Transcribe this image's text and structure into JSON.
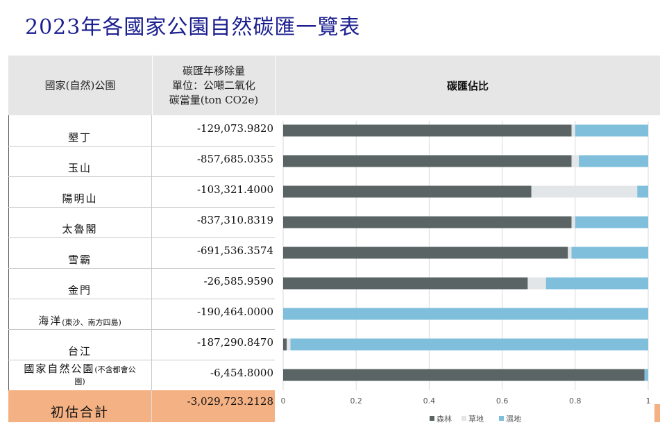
{
  "title": "2023年各國家公園自然碳匯一覽表",
  "table": {
    "header_name": "國家(自然)公園",
    "header_value_lines": [
      "碳匯年移除量",
      "單位：公噸二氧化",
      "碳當量(ton CO2e)"
    ],
    "rows": [
      {
        "name": "墾丁",
        "value": "-129,073.9820"
      },
      {
        "name": "玉山",
        "value": "-857,685.0355"
      },
      {
        "name": "陽明山",
        "value": "-103,321.4000"
      },
      {
        "name": "太魯閣",
        "value": "-837,310.8319"
      },
      {
        "name": "雪霸",
        "value": "-691,536.3574"
      },
      {
        "name": "金門",
        "value": "-26,585.9590"
      },
      {
        "name": "海洋",
        "name_small": "(東沙、南方四島)",
        "value": "-190,464.0000"
      },
      {
        "name": "台江",
        "value": "-187,290.8470"
      },
      {
        "name": "國家自然公園",
        "name_small": "(不含都會公園)",
        "value": "-6,454.8000"
      }
    ],
    "total": {
      "name": "初估合計",
      "value": "-3,029,723.2128"
    }
  },
  "chart_header": "碳匯佔比",
  "chart_data": {
    "type": "bar",
    "orientation": "horizontal",
    "stacked": true,
    "categories": [
      "墾丁",
      "玉山",
      "陽明山",
      "太魯閣",
      "雪霸",
      "金門",
      "海洋",
      "台江",
      "國家自然公園"
    ],
    "series": [
      {
        "name": "森林",
        "color": "#5a6464",
        "values": [
          0.79,
          0.79,
          0.68,
          0.79,
          0.78,
          0.67,
          0.0,
          0.01,
          0.99
        ]
      },
      {
        "name": "草地",
        "color": "#e3e6e8",
        "values": [
          0.01,
          0.02,
          0.29,
          0.01,
          0.01,
          0.05,
          0.0,
          0.01,
          0.0
        ]
      },
      {
        "name": "濕地",
        "color": "#7fbfdc",
        "values": [
          0.2,
          0.19,
          0.03,
          0.2,
          0.21,
          0.28,
          1.0,
          0.98,
          0.01
        ]
      }
    ],
    "xticks": [
      "0",
      "0.2",
      "0.4",
      "0.6",
      "0.8",
      "1"
    ],
    "xlim": [
      0,
      1
    ],
    "grid": true,
    "legend": "bottom"
  }
}
